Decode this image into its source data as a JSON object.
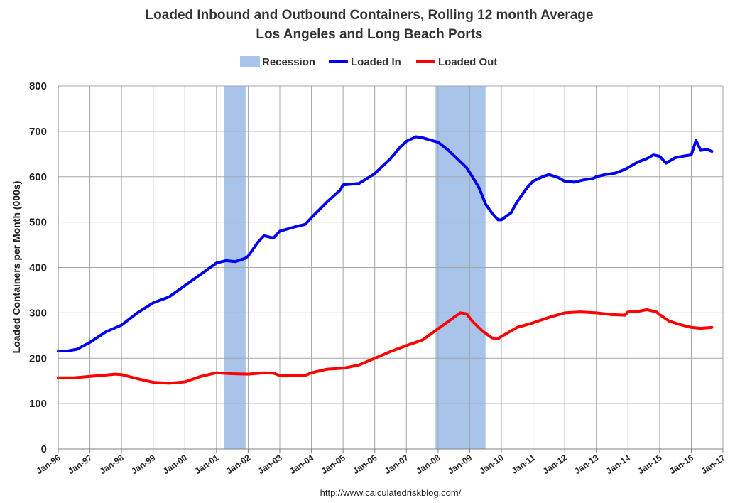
{
  "chart_data": {
    "type": "line",
    "title": "Loaded Inbound and Outbound Containers, Rolling 12 month Average",
    "subtitle": "Los Angeles and Long Beach Ports",
    "ylabel": "Loaded Containers per Month (000s)",
    "xlabel": "",
    "ylim": [
      0,
      800
    ],
    "yticks": [
      "0",
      "100",
      "200",
      "300",
      "400",
      "500",
      "600",
      "700",
      "800"
    ],
    "xticks": [
      "Jan-96",
      "Jan-97",
      "Jan-98",
      "Jan-99",
      "Jan-00",
      "Jan-01",
      "Jan-02",
      "Jan-03",
      "Jan-04",
      "Jan-05",
      "Jan-06",
      "Jan-07",
      "Jan-08",
      "Jan-09",
      "Jan-10",
      "Jan-11",
      "Jan-12",
      "Jan-13",
      "Jan-14",
      "Jan-15",
      "Jan-16",
      "Jan-17"
    ],
    "grid": true,
    "legend": {
      "position": "top-center",
      "items": [
        {
          "label": "Recession",
          "color": "#a9c4eb",
          "kind": "band"
        },
        {
          "label": "Loaded In",
          "color": "#0000ee",
          "kind": "line"
        },
        {
          "label": "Loaded Out",
          "color": "#ff0000",
          "kind": "line"
        }
      ]
    },
    "recessions": [
      {
        "start": 2001.25,
        "end": 2001.92
      },
      {
        "start": 2007.92,
        "end": 2009.5
      }
    ],
    "series": [
      {
        "name": "Loaded In",
        "color": "#0000ee",
        "x": [
          1996.0,
          1996.3,
          1996.6,
          1997.0,
          1997.5,
          1998.0,
          1998.5,
          1999.0,
          1999.5,
          2000.0,
          2000.5,
          2001.0,
          2001.3,
          2001.6,
          2001.9,
          2002.0,
          2002.3,
          2002.5,
          2002.8,
          2003.0,
          2003.5,
          2003.8,
          2004.0,
          2004.5,
          2004.9,
          2005.0,
          2005.5,
          2005.8,
          2006.0,
          2006.5,
          2006.8,
          2007.0,
          2007.3,
          2007.5,
          2007.8,
          2008.0,
          2008.3,
          2008.6,
          2008.9,
          2009.1,
          2009.3,
          2009.5,
          2009.7,
          2009.9,
          2010.0,
          2010.3,
          2010.5,
          2010.8,
          2011.0,
          2011.3,
          2011.5,
          2011.8,
          2012.0,
          2012.3,
          2012.6,
          2012.9,
          2013.0,
          2013.3,
          2013.6,
          2013.9,
          2014.0,
          2014.3,
          2014.6,
          2014.8,
          2015.0,
          2015.2,
          2015.5,
          2015.8,
          2016.0,
          2016.15,
          2016.3,
          2016.5,
          2016.65
        ],
        "values": [
          216,
          216,
          220,
          235,
          258,
          273,
          300,
          322,
          335,
          360,
          385,
          410,
          415,
          413,
          420,
          425,
          455,
          470,
          465,
          480,
          490,
          495,
          510,
          545,
          570,
          582,
          585,
          598,
          607,
          640,
          665,
          678,
          688,
          686,
          680,
          676,
          660,
          640,
          620,
          598,
          575,
          540,
          520,
          505,
          505,
          520,
          545,
          575,
          590,
          600,
          605,
          598,
          590,
          588,
          593,
          596,
          600,
          605,
          608,
          616,
          620,
          632,
          640,
          648,
          645,
          630,
          642,
          646,
          648,
          680,
          658,
          660,
          656
        ]
      },
      {
        "name": "Loaded Out",
        "color": "#ff0000",
        "x": [
          1996.0,
          1996.5,
          1997.0,
          1997.5,
          1997.8,
          1998.0,
          1998.5,
          1999.0,
          1999.5,
          2000.0,
          2000.5,
          2001.0,
          2001.5,
          2002.0,
          2002.5,
          2002.8,
          2003.0,
          2003.5,
          2003.8,
          2004.0,
          2004.5,
          2005.0,
          2005.5,
          2006.0,
          2006.5,
          2007.0,
          2007.5,
          2008.0,
          2008.5,
          2008.7,
          2008.9,
          2009.1,
          2009.4,
          2009.7,
          2009.9,
          2010.0,
          2010.5,
          2011.0,
          2011.5,
          2012.0,
          2012.5,
          2013.0,
          2013.5,
          2013.9,
          2014.0,
          2014.3,
          2014.6,
          2014.9,
          2015.0,
          2015.3,
          2015.6,
          2016.0,
          2016.3,
          2016.65
        ],
        "values": [
          157,
          157,
          160,
          163,
          165,
          164,
          155,
          147,
          145,
          148,
          160,
          168,
          166,
          165,
          168,
          167,
          162,
          162,
          162,
          168,
          176,
          178,
          185,
          200,
          215,
          228,
          240,
          265,
          290,
          300,
          298,
          280,
          260,
          245,
          243,
          248,
          268,
          278,
          290,
          300,
          302,
          300,
          296,
          295,
          302,
          303,
          307,
          302,
          296,
          282,
          275,
          268,
          266,
          268
        ]
      }
    ]
  },
  "footer": {
    "url": "http://www.calculatedriskblog.com/"
  }
}
